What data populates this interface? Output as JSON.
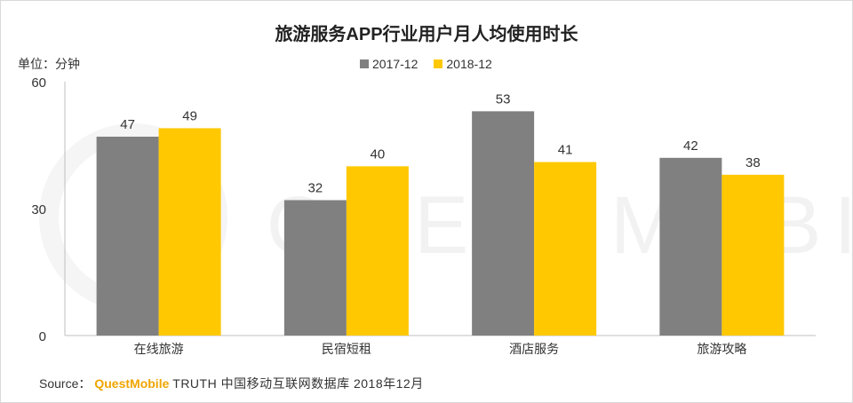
{
  "chart_data": {
    "type": "bar",
    "title": "旅游服务APP行业用户月人均使用时长",
    "unit_label": "单位：分钟",
    "categories": [
      "在线旅游",
      "民宿短租",
      "酒店服务",
      "旅游攻略"
    ],
    "series": [
      {
        "name": "2017-12",
        "values": [
          47,
          32,
          53,
          42
        ],
        "color": "#808080"
      },
      {
        "name": "2018-12",
        "values": [
          49,
          40,
          41,
          38
        ],
        "color": "#ffc800"
      }
    ],
    "ylim": [
      0,
      60
    ],
    "yticks": [
      0,
      30,
      60
    ],
    "legend_position": "top",
    "grid": false
  },
  "source": {
    "prefix": "Source：",
    "brand": "QuestMobile",
    "text": "TRUTH 中国移动互联网数据库 2018年12月"
  },
  "watermark": "QUESTMOBILE"
}
